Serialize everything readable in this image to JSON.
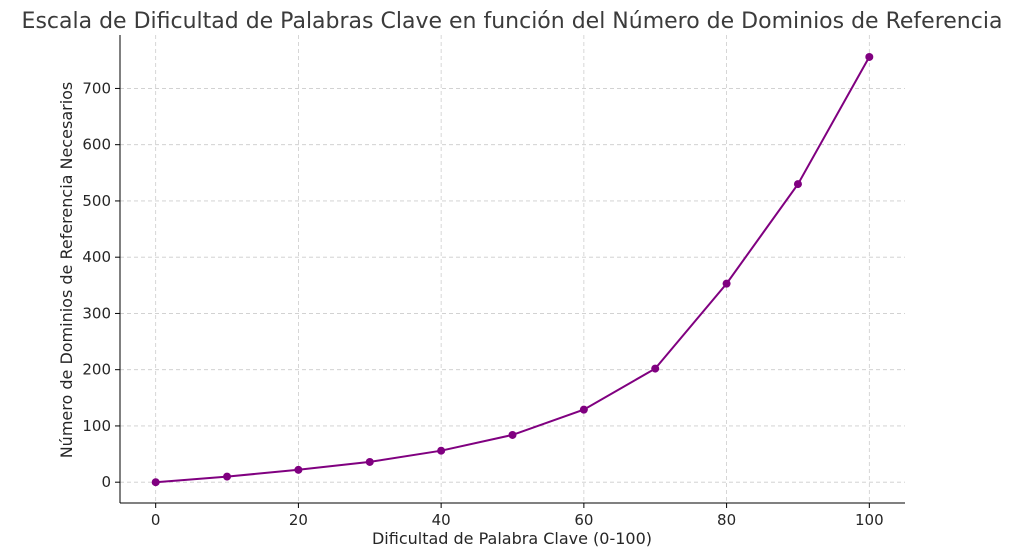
{
  "chart_data": {
    "type": "line",
    "title": "Escala de Dificultad de Palabras Clave en función del Número de Dominios de Referencia",
    "xlabel": "Dificultad de Palabra Clave (0-100)",
    "ylabel": "Número de Dominios de Referencia Necesarios",
    "xlim": [
      -5,
      105
    ],
    "ylim": [
      -37,
      795
    ],
    "xticks": [
      0,
      20,
      40,
      60,
      80,
      100
    ],
    "yticks": [
      0,
      100,
      200,
      300,
      400,
      500,
      600,
      700
    ],
    "grid": true,
    "color": "#800080",
    "series": [
      {
        "x": [
          0,
          10,
          20,
          30,
          40,
          50,
          60,
          70,
          80,
          90,
          100
        ],
        "y": [
          0,
          10,
          22,
          36,
          56,
          84,
          129,
          202,
          353,
          530,
          756
        ]
      }
    ]
  }
}
